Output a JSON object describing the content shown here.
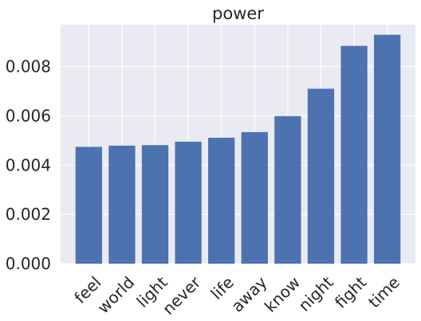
{
  "chart_data": {
    "type": "bar",
    "title": "power",
    "xlabel": "",
    "ylabel": "",
    "categories": [
      "feel",
      "world",
      "light",
      "never",
      "life",
      "away",
      "know",
      "night",
      "fight",
      "time"
    ],
    "values": [
      0.00474,
      0.00479,
      0.00481,
      0.00495,
      0.00511,
      0.00534,
      0.00599,
      0.0071,
      0.00884,
      0.00929
    ],
    "ylim": [
      0,
      0.0097
    ],
    "yticks": [
      0,
      0.002,
      0.004,
      0.006,
      0.008
    ],
    "ytick_labels": [
      "0.000",
      "0.002",
      "0.004",
      "0.006",
      "0.008"
    ],
    "grid": true,
    "bar_color": "#4c72b0",
    "background_color": "#eaeaf2",
    "grid_color": "#ffffff"
  }
}
